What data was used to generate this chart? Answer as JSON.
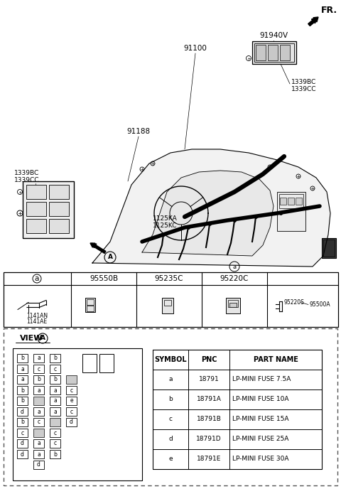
{
  "bg_color": "#ffffff",
  "symbol_table": {
    "headers": [
      "SYMBOL",
      "PNC",
      "PART NAME"
    ],
    "rows": [
      [
        "a",
        "18791",
        "LP-MINI FUSE 7.5A"
      ],
      [
        "b",
        "18791A",
        "LP-MINI FUSE 10A"
      ],
      [
        "c",
        "18791B",
        "LP-MINI FUSE 15A"
      ],
      [
        "d",
        "18791D",
        "LP-MINI FUSE 25A"
      ],
      [
        "e",
        "18791E",
        "LP-MINI FUSE 30A"
      ]
    ]
  },
  "parts_table_headers": [
    "a",
    "95550B",
    "95235C",
    "95220C",
    ""
  ],
  "parts_labels": [
    "1141AN\n1141AE",
    "",
    "",
    "",
    ""
  ],
  "fuse_col1": [
    "b",
    "a",
    "a",
    "b",
    "b",
    "d",
    "b",
    "c",
    "d",
    "d"
  ],
  "fuse_col2": [
    "a",
    "c",
    "b",
    "a",
    "",
    "a",
    "c",
    "",
    "a",
    "a",
    "d"
  ],
  "fuse_col3": [
    "b",
    "c",
    "b",
    "a",
    "a",
    "a",
    "",
    "c",
    "c",
    "b"
  ],
  "fuse_col4": [
    "",
    "c",
    "e",
    "c",
    "d"
  ]
}
